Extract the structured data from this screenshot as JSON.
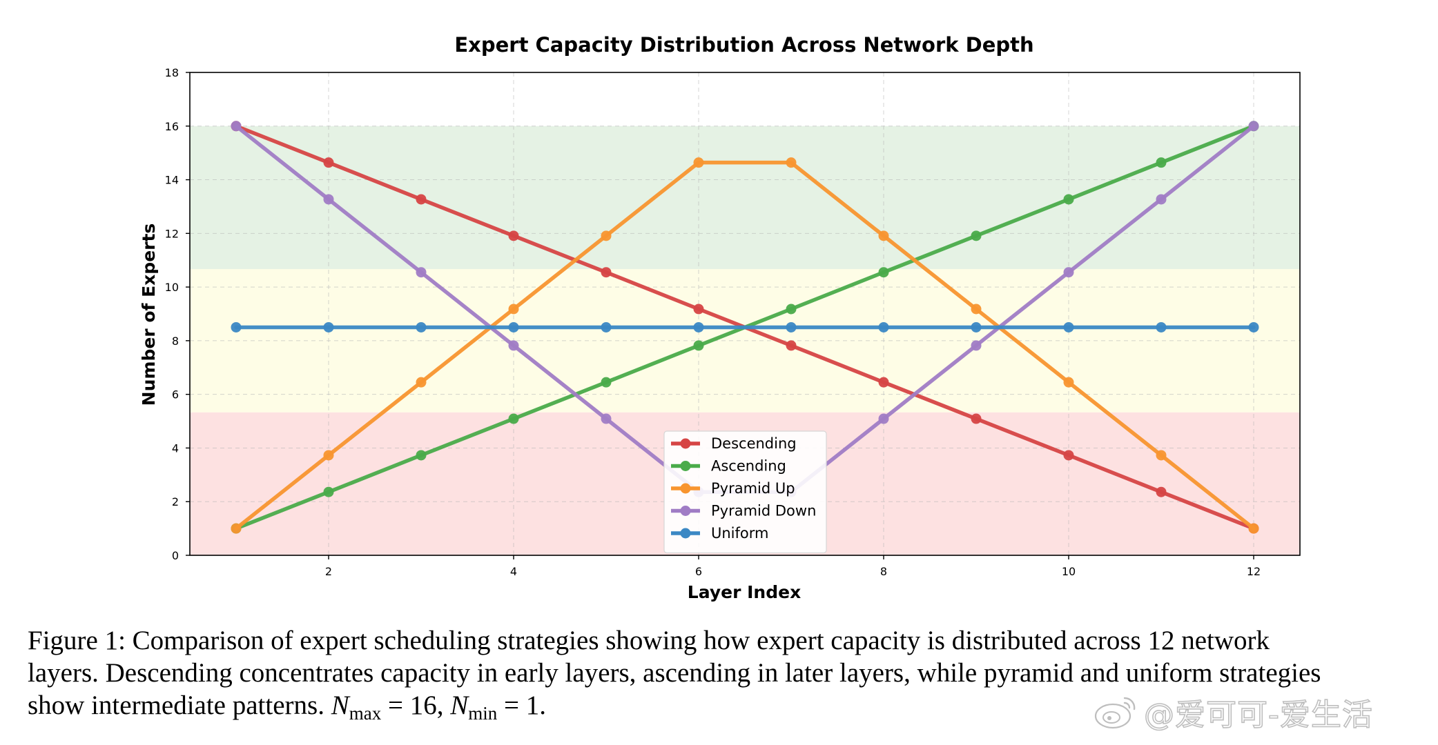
{
  "chart_data": {
    "type": "line",
    "title": "Expert Capacity Distribution Across Network Depth",
    "xlabel": "Layer Index",
    "ylabel": "Number of Experts",
    "x": [
      1,
      2,
      3,
      4,
      5,
      6,
      7,
      8,
      9,
      10,
      11,
      12
    ],
    "xlim": [
      0.5,
      12.5
    ],
    "ylim": [
      0,
      18
    ],
    "xticks": [
      2,
      4,
      6,
      8,
      10,
      12
    ],
    "yticks": [
      0,
      2,
      4,
      6,
      8,
      10,
      12,
      14,
      16,
      18
    ],
    "grid": true,
    "legend_position": "lower-center",
    "bands": [
      {
        "y_range": [
          0,
          5.33
        ],
        "color": "#fde1e1"
      },
      {
        "y_range": [
          5.33,
          10.67
        ],
        "color": "#fefde6"
      },
      {
        "y_range": [
          10.67,
          16
        ],
        "color": "#e5f2e4"
      }
    ],
    "series": [
      {
        "name": "Descending",
        "color": "#d64545",
        "values": [
          16,
          14.64,
          13.27,
          11.91,
          10.55,
          9.18,
          7.82,
          6.45,
          5.09,
          3.73,
          2.36,
          1
        ]
      },
      {
        "name": "Ascending",
        "color": "#4aab4a",
        "values": [
          1,
          2.36,
          3.73,
          5.09,
          6.45,
          7.82,
          9.18,
          10.55,
          11.91,
          13.27,
          14.64,
          16
        ]
      },
      {
        "name": "Pyramid Up",
        "color": "#f8952f",
        "values": [
          1,
          3.73,
          6.45,
          9.18,
          11.91,
          14.64,
          14.64,
          11.91,
          9.18,
          6.45,
          3.73,
          1
        ]
      },
      {
        "name": "Pyramid Down",
        "color": "#a07cc5",
        "values": [
          16,
          13.27,
          10.55,
          7.82,
          5.09,
          2.36,
          2.36,
          5.09,
          7.82,
          10.55,
          13.27,
          16
        ]
      },
      {
        "name": "Uniform",
        "color": "#3b88c4",
        "values": [
          8.5,
          8.5,
          8.5,
          8.5,
          8.5,
          8.5,
          8.5,
          8.5,
          8.5,
          8.5,
          8.5,
          8.5
        ]
      }
    ]
  },
  "caption": {
    "line1": "Figure 1: Comparison of expert scheduling strategies showing how expert capacity is distributed across 12 network",
    "line2": "layers. Descending concentrates capacity in early layers, ascending in later layers, while pyramid and uniform strategies",
    "line3_text": "show intermediate patterns. ",
    "nmax_symbol": "N",
    "nmax_sub": "max",
    "nmax_eq": " = 16, ",
    "nmin_symbol": "N",
    "nmin_sub": "min",
    "nmin_eq": " = 1."
  },
  "watermark": {
    "icon": "weibo-icon",
    "text": "@爱可可-爱生活"
  }
}
